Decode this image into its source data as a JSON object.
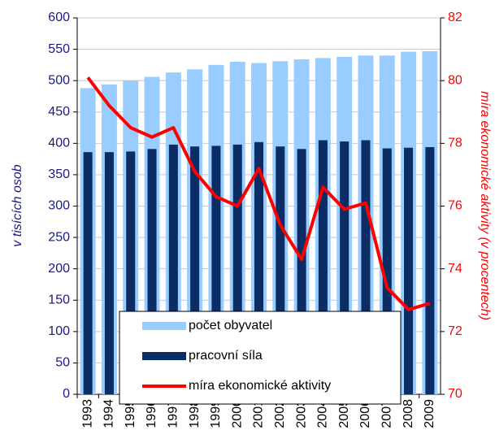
{
  "chart_data": {
    "type": "bar",
    "y_label": "v tisících osob",
    "y2_label": "míra ekonomické aktivity (v procentech)",
    "categories": [
      "1993",
      "1994",
      "1995",
      "1996",
      "1997",
      "1998",
      "1999",
      "2000",
      "2001",
      "2002",
      "2003",
      "2004",
      "2005",
      "2006",
      "2007",
      "2008",
      "2009"
    ],
    "series": [
      {
        "name": "počet obyvatel",
        "type": "bar",
        "color": "#99ccff",
        "values": [
          488,
          494,
          500,
          506,
          513,
          518,
          525,
          530,
          528,
          531,
          534,
          536,
          538,
          540,
          540,
          546,
          547
        ]
      },
      {
        "name": "pracovní síla",
        "type": "bar",
        "color": "#0a2d66",
        "values": [
          386,
          386,
          387,
          391,
          398,
          395,
          396,
          398,
          402,
          395,
          391,
          405,
          403,
          405,
          392,
          393,
          394
        ]
      },
      {
        "name": "míra ekonomické aktivity",
        "type": "line",
        "axis": "y2",
        "color": "#ff0000",
        "values": [
          80.1,
          79.2,
          78.5,
          78.2,
          78.5,
          77.1,
          76.3,
          76.0,
          77.2,
          75.4,
          74.3,
          76.6,
          75.9,
          76.1,
          73.4,
          72.7,
          72.9
        ]
      }
    ],
    "ylim": [
      0,
      600
    ],
    "yticks": [
      0,
      50,
      100,
      150,
      200,
      250,
      300,
      350,
      400,
      450,
      500,
      550,
      600
    ],
    "y2lim": [
      70,
      82
    ],
    "y2ticks": [
      70,
      72,
      74,
      76,
      78,
      80,
      82
    ],
    "grid": true
  }
}
